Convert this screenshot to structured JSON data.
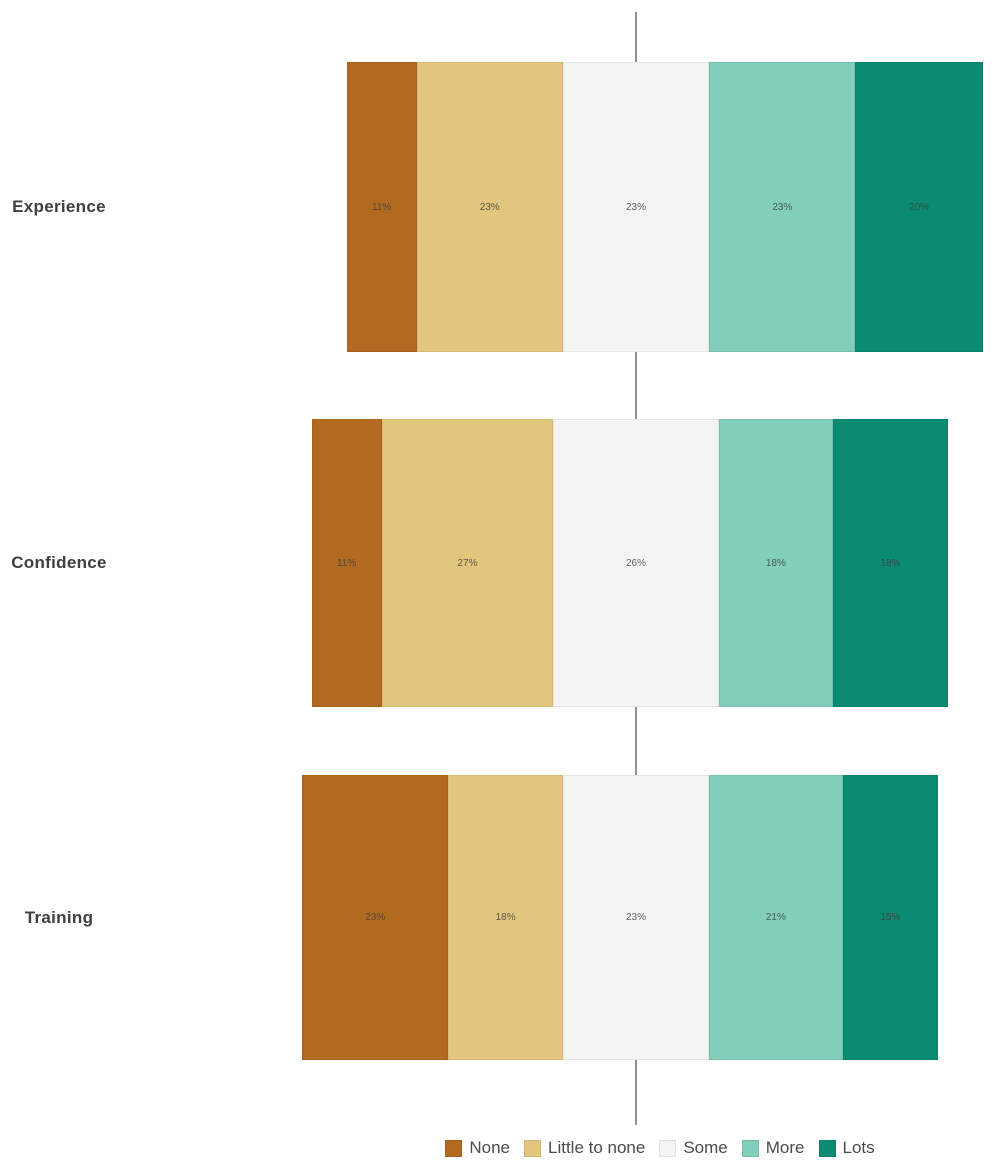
{
  "chart_data": {
    "type": "bar",
    "subtype": "diverging-stacked-horizontal",
    "title": "",
    "categories": [
      "Experience",
      "Confidence",
      "Training"
    ],
    "levels": [
      {
        "name": "None",
        "color": "#b16a20"
      },
      {
        "name": "Little to none",
        "color": "#e3c67d"
      },
      {
        "name": "Some",
        "color": "#f4f4f2"
      },
      {
        "name": "More",
        "color": "#81ceba"
      },
      {
        "name": "Lots",
        "color": "#0c8b73"
      }
    ],
    "series": [
      {
        "name": "Experience",
        "values": [
          11,
          23,
          23,
          23,
          20
        ],
        "labels": [
          "11%",
          "23%",
          "23%",
          "23%",
          "20%"
        ]
      },
      {
        "name": "Confidence",
        "values": [
          11,
          27,
          26,
          18,
          18
        ],
        "labels": [
          "11%",
          "27%",
          "26%",
          "18%",
          "18%"
        ]
      },
      {
        "name": "Training",
        "values": [
          23,
          18,
          23,
          21,
          15
        ],
        "labels": [
          "23%",
          "18%",
          "23%",
          "21%",
          "15%"
        ]
      }
    ],
    "legend": {
      "position": "bottom",
      "entries": [
        "None",
        "Little to none",
        "Some",
        "More",
        "Lots"
      ]
    },
    "baseline_color": "#909090",
    "neutral_level": "Some",
    "row_total": 100
  }
}
